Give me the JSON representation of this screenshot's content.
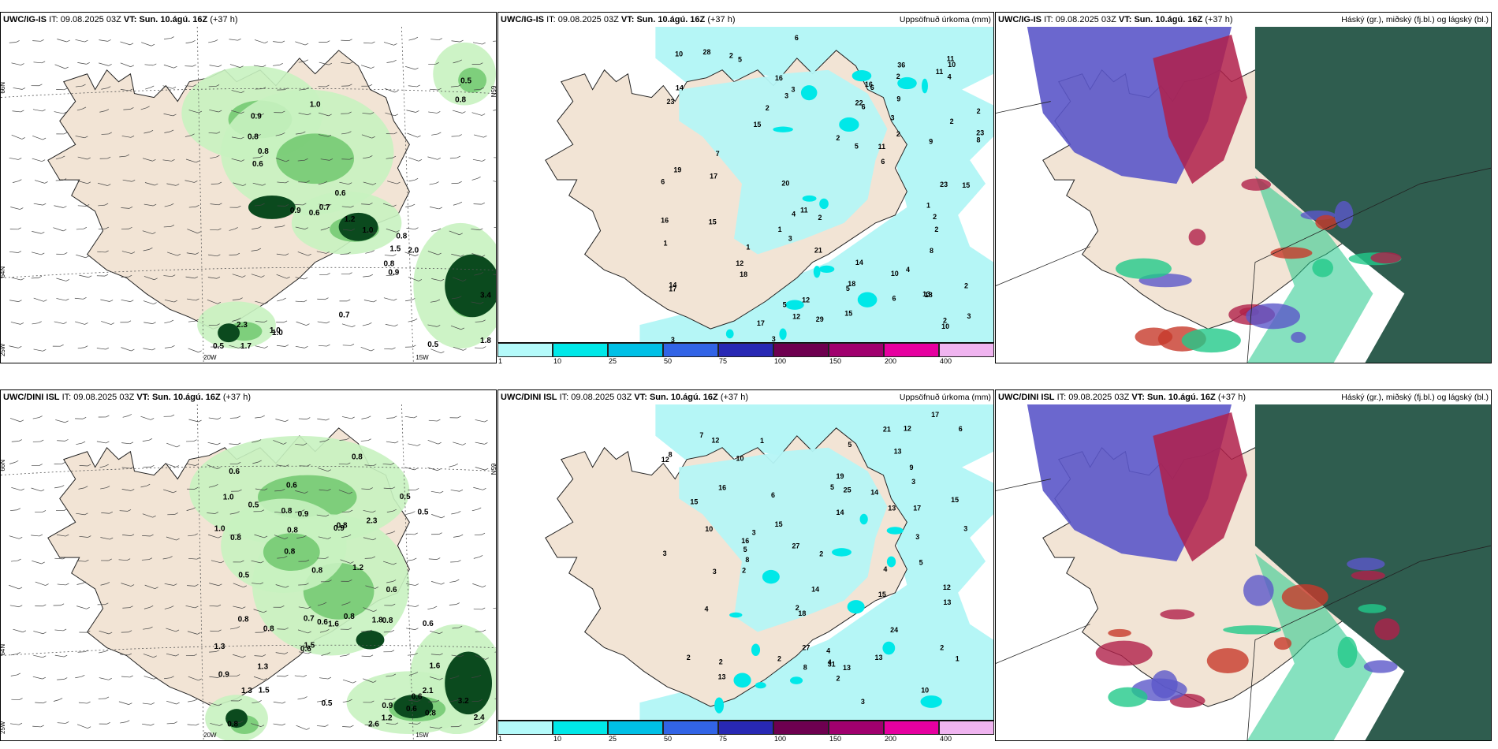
{
  "rows": [
    {
      "model": "UWC/IG-IS",
      "it_label": "IT:",
      "it_value": "09.08.2025 03Z",
      "vt_label": "VT:",
      "vt_value": "Sun. 10.ágú. 16Z",
      "lead": "(+37 h)",
      "wind_values": [
        "0.5",
        "0.8",
        "1.0",
        "0.9",
        "0.8",
        "0.8",
        "0.6",
        "0.6",
        "0.9",
        "0.6",
        "0.7",
        "1.2",
        "1.0",
        "0.8",
        "1.5",
        "2.0",
        "0.8",
        "0.9",
        "0.7",
        "2.3",
        "1.0",
        "0.5",
        "1.7",
        "1.0",
        "3.4",
        "0.5",
        "1.8"
      ],
      "grid_labels": {
        "lat1": "66N",
        "lat2": "64N",
        "lat3": "25W",
        "lon1": "20W",
        "lon2": "15W",
        "lat_r": "65N"
      },
      "precip_values": [
        "2",
        "6",
        "6",
        "3",
        "14",
        "15",
        "23",
        "17",
        "2",
        "2",
        "10",
        "12",
        "11",
        "10",
        "17",
        "8",
        "21",
        "1",
        "11",
        "3",
        "7",
        "5",
        "2",
        "3",
        "2",
        "6",
        "8",
        "4",
        "10",
        "18",
        "5",
        "9",
        "6",
        "2",
        "2",
        "4",
        "2",
        "16",
        "3",
        "23",
        "5",
        "11",
        "29",
        "3",
        "14",
        "15",
        "36",
        "23",
        "3",
        "15",
        "1",
        "15",
        "2",
        "1",
        "5",
        "3",
        "1",
        "2",
        "4",
        "14",
        "9",
        "2",
        "19",
        "28",
        "18",
        "18",
        "11",
        "12",
        "16",
        "12",
        "11",
        "16",
        "22",
        "20",
        "13",
        "17",
        "2",
        "10",
        "6",
        "6"
      ],
      "cloud_title": "Háský (gr.), miðský (fj.bl.) og lágský (bl.)"
    },
    {
      "model": "UWC/DINI ISL",
      "it_label": "IT:",
      "it_value": "09.08.2025 03Z",
      "vt_label": "VT:",
      "vt_value": "Sun. 10.ágú. 16Z",
      "lead": "(+37 h)",
      "wind_values": [
        "0.5",
        "0.6",
        "0.8",
        "0.6",
        "0.8",
        "0.8",
        "0.6",
        "1.0",
        "0.5",
        "0.6",
        "0.7",
        "0.5",
        "0.9",
        "0.9",
        "1.3",
        "1.6",
        "0.8",
        "0.8",
        "0.6",
        "0.6",
        "0.9",
        "0.5",
        "0.5",
        "1.5",
        "0.8",
        "0.8",
        "1.2",
        "0.8",
        "0.6",
        "1.3",
        "1.3",
        "0.8",
        "2.3",
        "0.8",
        "0.8",
        "1.0",
        "1.5",
        "0.6",
        "1.8",
        "0.8",
        "0.9",
        "2.1",
        "1.2",
        "3.2",
        "1.6",
        "2.4",
        "2.6",
        "0.8"
      ],
      "grid_labels": {
        "lat1": "66N",
        "lat2": "64N",
        "lat3": "25W",
        "lon1": "20W",
        "lon2": "15W",
        "lat_r": "65N"
      },
      "precip_values": [
        "3",
        "6",
        "6",
        "3",
        "14",
        "12",
        "27",
        "16",
        "2",
        "10",
        "8",
        "8",
        "13",
        "7",
        "5",
        "4",
        "12",
        "8",
        "5",
        "3",
        "31",
        "2",
        "4",
        "2",
        "4",
        "2",
        "1",
        "3",
        "4",
        "21",
        "15",
        "13",
        "17",
        "18",
        "13",
        "15",
        "24",
        "25",
        "3",
        "2",
        "5",
        "10",
        "5",
        "2",
        "3",
        "2",
        "1",
        "17",
        "14",
        "15",
        "19",
        "12",
        "14",
        "27",
        "13",
        "16",
        "13",
        "15",
        "10",
        "9",
        "13",
        "12",
        "3",
        "2"
      ],
      "cloud_title": "Háský (gr.), miðský (fj.bl.) og lágský (bl.)"
    }
  ],
  "precip_title": "Uppsöfnuð úrkoma (mm)",
  "legend": {
    "labels": [
      "1",
      "10",
      "25",
      "50",
      "75",
      "100",
      "150",
      "200",
      "400"
    ],
    "colors": [
      "#b4fafa",
      "#00e8e8",
      "#00c0e6",
      "#3264e6",
      "#2828b4",
      "#6e0050",
      "#a0006e",
      "#e600a0",
      "#f0b4f0"
    ]
  },
  "colors": {
    "land": "#f2e4d5",
    "sea": "#ffffff",
    "precip_light": "#b5f6f6",
    "wind_light": "#c8f2c0",
    "wind_mid": "#5cbf5c",
    "wind_dark": "#0b4a1e",
    "cloud_high": "#2f5d4f",
    "cloud_mid": "#b0204a",
    "cloud_low": "#5b57c9",
    "cloud_green": "#22c98a"
  }
}
